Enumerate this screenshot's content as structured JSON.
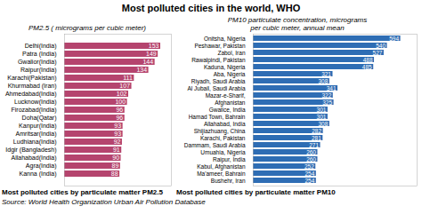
{
  "title": "Most polluted cities in the world, WHO",
  "annotations": [
    "Source: World Health Organization Urban Air Pollution Database"
  ],
  "chart_data": [
    {
      "type": "bar",
      "orientation": "horizontal",
      "title": "PM2.5 ( micrograms per cubic meter)",
      "annotations": [
        "Most polluted cities by particulate matter PM2.5"
      ],
      "categories": [
        "Delhi(India)",
        "Patra (India)",
        "Gwalior(India)",
        "Raipur(India)",
        "Karachi(Pakistan)",
        "Khurmabad (Iran)",
        "Ahmedabad(India)",
        "Lucknow(India)",
        "Firozabad(India)",
        "Doha(Qatar)",
        "Kanpur(India)",
        "Amritsar(India)",
        "Ludhiana(India)",
        "Idgir (Bangladesh)",
        "Allahabad(India)",
        "Agra(India)",
        "Kanna (India)"
      ],
      "values": [
        153,
        149,
        144,
        134,
        111,
        107,
        102,
        100,
        96,
        96,
        93,
        93,
        92,
        91,
        90,
        89,
        88
      ],
      "color": "#b5446e",
      "xlim": [
        0,
        170
      ],
      "xticks": [],
      "tick_labels": "y",
      "data_labels": true,
      "grid": false
    },
    {
      "type": "bar",
      "orientation": "horizontal",
      "title": "PM10 particulate concentration, micrograms\nper cubic meter, annual mean",
      "annotations": [
        "Most polluted cities by particulate matter PM10"
      ],
      "categories": [
        "Onitsha, Nigeria",
        "Peshawar, Pakistan",
        "Zabol, Iran",
        "Rawalpindi, Pakistan",
        "Kaduna, Nigeria",
        "Aba, Nigeria",
        "Riyadh, Saudi Arabia",
        "Al Jubail, Saudi Arabia",
        "Mazar-e-Sharif,",
        "Afghanistan",
        "Gwalice, India",
        "Hamad Town, Bahrain",
        "Allahabad, India",
        "Shijiazhuang, China",
        "Karachi, Pakistan",
        "Dammam, Saudi Arabia",
        "Umuahia, Nigeria",
        "Raipur, India",
        "Kabul, Afghanistan",
        "Ma'ameer, Bahrain",
        "Bushehr, Iran"
      ],
      "values": [
        594,
        540,
        527,
        488,
        485,
        321,
        308,
        341,
        322,
        325,
        301,
        301,
        308,
        282,
        281,
        271,
        260,
        260,
        252,
        254,
        254
      ],
      "color": "#2e6db4",
      "xlim": [
        0,
        660
      ],
      "xticks": [],
      "tick_labels": "y",
      "data_labels": true,
      "grid": false
    }
  ]
}
